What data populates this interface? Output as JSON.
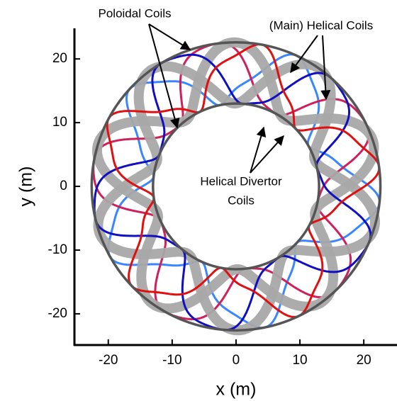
{
  "chart_data": {
    "type": "coil-map",
    "x_label": "x (m)",
    "y_label": "y (m)",
    "xlim": [
      -25.3,
      25.2
    ],
    "ylim": [
      -24.9,
      24.8
    ],
    "xticks": [
      -20,
      -10,
      0,
      10,
      20
    ],
    "yticks": [
      -20,
      -10,
      0,
      10,
      20
    ],
    "annotations": [
      "Poloidal Coils",
      "(Main) Helical Coils",
      "Helical Divertor",
      "Coils"
    ]
  }
}
